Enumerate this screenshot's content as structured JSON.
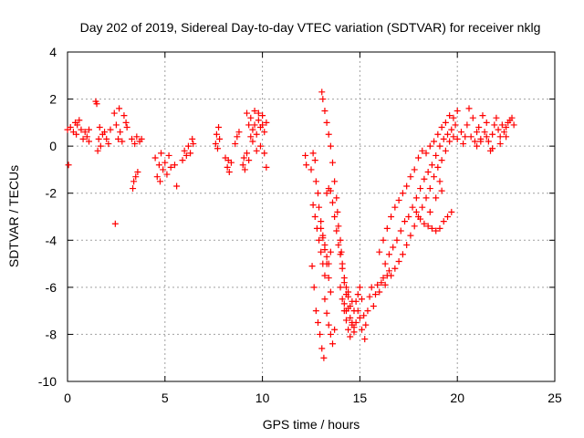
{
  "chart_data": {
    "type": "scatter",
    "title": "Day 202 of 2019, Sidereal Day-to-day VTEC variation (SDTVAR) for receiver nklg",
    "xlabel": "GPS time / hours",
    "ylabel": "SDTVAR / TECUs",
    "xlim": [
      0,
      25
    ],
    "ylim": [
      -10,
      4
    ],
    "xticks": [
      0,
      5,
      10,
      15,
      20,
      25
    ],
    "yticks": [
      -10,
      -8,
      -6,
      -4,
      -2,
      0,
      2,
      4
    ],
    "grid": true,
    "marker": "+",
    "marker_color": "#ff0000",
    "series": [
      {
        "name": "SDTVAR",
        "points": [
          [
            0.0,
            0.7
          ],
          [
            0.05,
            -0.8
          ],
          [
            0.15,
            0.8
          ],
          [
            0.3,
            0.6
          ],
          [
            0.4,
            1.0
          ],
          [
            0.45,
            0.5
          ],
          [
            0.5,
            0.9
          ],
          [
            0.6,
            1.1
          ],
          [
            0.7,
            0.7
          ],
          [
            0.8,
            0.3
          ],
          [
            0.9,
            0.6
          ],
          [
            1.0,
            0.4
          ],
          [
            1.1,
            0.2
          ],
          [
            1.1,
            0.7
          ],
          [
            1.45,
            1.9
          ],
          [
            1.5,
            1.8
          ],
          [
            1.55,
            -0.2
          ],
          [
            1.6,
            0.3
          ],
          [
            1.65,
            0.8
          ],
          [
            1.7,
            0.0
          ],
          [
            1.8,
            0.5
          ],
          [
            1.9,
            0.6
          ],
          [
            2.0,
            0.3
          ],
          [
            2.1,
            0.1
          ],
          [
            2.2,
            0.7
          ],
          [
            2.4,
            1.4
          ],
          [
            2.45,
            -3.3
          ],
          [
            2.5,
            0.9
          ],
          [
            2.6,
            0.3
          ],
          [
            2.65,
            1.6
          ],
          [
            2.7,
            0.6
          ],
          [
            2.8,
            0.2
          ],
          [
            2.9,
            1.3
          ],
          [
            3.0,
            1.0
          ],
          [
            3.05,
            0.8
          ],
          [
            3.3,
            0.3
          ],
          [
            3.35,
            -1.8
          ],
          [
            3.4,
            -1.5
          ],
          [
            3.45,
            0.1
          ],
          [
            3.5,
            -1.3
          ],
          [
            3.55,
            0.4
          ],
          [
            3.6,
            -1.1
          ],
          [
            3.7,
            0.2
          ],
          [
            3.8,
            0.3
          ],
          [
            4.5,
            -0.5
          ],
          [
            4.6,
            -1.3
          ],
          [
            4.7,
            -0.8
          ],
          [
            4.75,
            -1.5
          ],
          [
            4.8,
            -0.3
          ],
          [
            4.9,
            -1.0
          ],
          [
            5.0,
            -0.7
          ],
          [
            5.1,
            -1.2
          ],
          [
            5.2,
            -0.4
          ],
          [
            5.3,
            -0.9
          ],
          [
            5.5,
            -0.8
          ],
          [
            5.6,
            -1.7
          ],
          [
            5.9,
            -0.6
          ],
          [
            6.0,
            -0.2
          ],
          [
            6.1,
            -0.4
          ],
          [
            6.2,
            0.0
          ],
          [
            6.3,
            -0.3
          ],
          [
            6.4,
            0.3
          ],
          [
            6.45,
            0.1
          ],
          [
            7.6,
            0.1
          ],
          [
            7.65,
            0.5
          ],
          [
            7.7,
            -0.1
          ],
          [
            7.75,
            0.8
          ],
          [
            7.8,
            0.3
          ],
          [
            8.1,
            -0.5
          ],
          [
            8.2,
            -0.9
          ],
          [
            8.25,
            -0.6
          ],
          [
            8.3,
            -1.1
          ],
          [
            8.4,
            -0.7
          ],
          [
            8.6,
            0.1
          ],
          [
            8.7,
            0.4
          ],
          [
            8.8,
            0.6
          ],
          [
            9.0,
            -0.8
          ],
          [
            9.05,
            -0.5
          ],
          [
            9.1,
            -1.0
          ],
          [
            9.2,
            -0.3
          ],
          [
            9.3,
            -0.6
          ],
          [
            9.2,
            1.4
          ],
          [
            9.3,
            0.9
          ],
          [
            9.4,
            1.2
          ],
          [
            9.5,
            0.7
          ],
          [
            9.6,
            1.5
          ],
          [
            9.7,
            0.5
          ],
          [
            9.8,
            1.1
          ],
          [
            9.9,
            0.8
          ],
          [
            10.0,
            1.3
          ],
          [
            10.1,
            0.6
          ],
          [
            10.2,
            1.0
          ],
          [
            9.5,
            0.2
          ],
          [
            9.7,
            -0.2
          ],
          [
            9.9,
            0.0
          ],
          [
            10.1,
            -0.3
          ],
          [
            10.2,
            -0.9
          ],
          [
            9.4,
            0.4
          ],
          [
            9.6,
            0.9
          ],
          [
            9.8,
            1.4
          ],
          [
            10.0,
            0.9
          ],
          [
            12.2,
            -0.4
          ],
          [
            12.25,
            -0.8
          ],
          [
            12.5,
            -1.0
          ],
          [
            12.55,
            -5.1
          ],
          [
            12.6,
            -2.5
          ],
          [
            12.65,
            -6.0
          ],
          [
            12.7,
            -3.0
          ],
          [
            12.75,
            -7.0
          ],
          [
            12.8,
            -3.5
          ],
          [
            12.85,
            -7.5
          ],
          [
            12.9,
            -4.0
          ],
          [
            12.95,
            -8.0
          ],
          [
            13.0,
            -4.5
          ],
          [
            13.05,
            -8.6
          ],
          [
            13.1,
            -5.0
          ],
          [
            13.15,
            -9.0
          ],
          [
            13.2,
            -5.5
          ],
          [
            12.6,
            -0.3
          ],
          [
            12.7,
            -0.6
          ],
          [
            12.75,
            -1.5
          ],
          [
            12.85,
            -2.0
          ],
          [
            12.9,
            -2.6
          ],
          [
            13.0,
            -3.2
          ],
          [
            13.1,
            -3.8
          ],
          [
            13.2,
            -4.4
          ],
          [
            13.3,
            -5.0
          ],
          [
            13.4,
            -5.6
          ],
          [
            13.5,
            -6.2
          ],
          [
            13.0,
            -3.5
          ],
          [
            13.1,
            -3.9
          ],
          [
            13.2,
            -4.2
          ],
          [
            13.3,
            -4.7
          ],
          [
            13.4,
            -5.0
          ],
          [
            13.5,
            -4.5
          ],
          [
            13.05,
            2.3
          ],
          [
            13.1,
            2.0
          ],
          [
            13.2,
            1.5
          ],
          [
            13.3,
            1.0
          ],
          [
            13.4,
            0.5
          ],
          [
            13.5,
            0.0
          ],
          [
            13.6,
            -0.7
          ],
          [
            13.7,
            -1.5
          ],
          [
            13.8,
            -2.2
          ],
          [
            13.85,
            -2.8
          ],
          [
            13.9,
            -3.4
          ],
          [
            14.0,
            -4.0
          ],
          [
            14.05,
            -4.5
          ],
          [
            14.1,
            -5.0
          ],
          [
            14.2,
            -5.6
          ],
          [
            14.3,
            -6.0
          ],
          [
            14.4,
            -6.4
          ],
          [
            14.5,
            -6.8
          ],
          [
            13.3,
            -2.0
          ],
          [
            13.4,
            -1.8
          ],
          [
            13.5,
            -1.9
          ],
          [
            13.6,
            -2.4
          ],
          [
            13.7,
            -3.0
          ],
          [
            13.8,
            -3.6
          ],
          [
            13.9,
            -4.2
          ],
          [
            14.0,
            -4.6
          ],
          [
            14.1,
            -5.2
          ],
          [
            14.2,
            -5.8
          ],
          [
            14.3,
            -6.3
          ],
          [
            14.4,
            -6.9
          ],
          [
            14.5,
            -7.3
          ],
          [
            14.6,
            -7.6
          ],
          [
            14.7,
            -7.9
          ],
          [
            13.2,
            -6.5
          ],
          [
            13.3,
            -7.1
          ],
          [
            13.4,
            -7.6
          ],
          [
            13.5,
            -8.0
          ],
          [
            13.6,
            -8.4
          ],
          [
            13.7,
            -7.8
          ],
          [
            14.0,
            -6.0
          ],
          [
            14.1,
            -6.5
          ],
          [
            14.2,
            -7.0
          ],
          [
            14.3,
            -7.4
          ],
          [
            14.4,
            -7.8
          ],
          [
            14.5,
            -8.1
          ],
          [
            14.6,
            -7.5
          ],
          [
            14.7,
            -7.0
          ],
          [
            14.8,
            -6.6
          ],
          [
            14.9,
            -6.3
          ],
          [
            15.0,
            -6.0
          ],
          [
            15.1,
            -6.5
          ],
          [
            15.2,
            -7.2
          ],
          [
            15.25,
            -8.2
          ],
          [
            15.3,
            -7.6
          ],
          [
            15.4,
            -7.0
          ],
          [
            15.5,
            -6.4
          ],
          [
            15.6,
            -6.0
          ],
          [
            15.7,
            -6.8
          ],
          [
            15.8,
            -6.3
          ],
          [
            15.9,
            -5.9
          ],
          [
            16.0,
            -6.2
          ],
          [
            16.1,
            -5.8
          ],
          [
            16.2,
            -5.6
          ],
          [
            16.3,
            -5.9
          ],
          [
            16.4,
            -5.5
          ],
          [
            16.5,
            -5.3
          ],
          [
            15.0,
            -7.3
          ],
          [
            15.1,
            -7.8
          ],
          [
            14.9,
            -7.0
          ],
          [
            14.8,
            -7.5
          ],
          [
            14.7,
            -7.7
          ],
          [
            14.6,
            -6.6
          ],
          [
            14.4,
            -6.2
          ],
          [
            14.3,
            -7.0
          ],
          [
            14.2,
            -6.7
          ],
          [
            16.0,
            -4.5
          ],
          [
            16.2,
            -4.0
          ],
          [
            16.4,
            -3.5
          ],
          [
            16.6,
            -3.0
          ],
          [
            16.8,
            -2.6
          ],
          [
            17.0,
            -2.3
          ],
          [
            17.2,
            -2.0
          ],
          [
            17.4,
            -1.7
          ],
          [
            17.6,
            -1.3
          ],
          [
            17.8,
            -1.0
          ],
          [
            18.0,
            -0.5
          ],
          [
            18.2,
            -0.2
          ],
          [
            18.4,
            -0.3
          ],
          [
            18.6,
            0.0
          ],
          [
            18.8,
            0.2
          ],
          [
            19.0,
            0.5
          ],
          [
            19.2,
            0.8
          ],
          [
            19.4,
            1.0
          ],
          [
            19.6,
            1.3
          ],
          [
            19.8,
            1.2
          ],
          [
            20.0,
            1.5
          ],
          [
            16.3,
            -5.0
          ],
          [
            16.5,
            -4.6
          ],
          [
            16.7,
            -4.3
          ],
          [
            16.9,
            -4.0
          ],
          [
            17.1,
            -3.6
          ],
          [
            17.3,
            -3.2
          ],
          [
            17.5,
            -3.0
          ],
          [
            17.7,
            -2.6
          ],
          [
            17.9,
            -2.2
          ],
          [
            18.1,
            -1.8
          ],
          [
            18.3,
            -1.4
          ],
          [
            18.5,
            -1.1
          ],
          [
            18.7,
            -0.8
          ],
          [
            18.9,
            -0.4
          ],
          [
            19.1,
            0.0
          ],
          [
            19.3,
            0.3
          ],
          [
            19.5,
            0.5
          ],
          [
            19.7,
            0.7
          ],
          [
            19.9,
            0.9
          ],
          [
            16.6,
            -5.5
          ],
          [
            16.8,
            -5.2
          ],
          [
            17.0,
            -4.9
          ],
          [
            17.2,
            -4.6
          ],
          [
            17.4,
            -4.2
          ],
          [
            17.6,
            -3.8
          ],
          [
            17.8,
            -3.4
          ],
          [
            18.0,
            -3.0
          ],
          [
            18.2,
            -2.6
          ],
          [
            18.4,
            -2.2
          ],
          [
            18.6,
            -1.8
          ],
          [
            18.8,
            -1.3
          ],
          [
            19.0,
            -0.9
          ],
          [
            19.2,
            -0.6
          ],
          [
            19.4,
            -0.2
          ],
          [
            19.6,
            0.2
          ],
          [
            19.8,
            0.4
          ],
          [
            17.9,
            -2.8
          ],
          [
            18.1,
            -3.1
          ],
          [
            18.3,
            -3.3
          ],
          [
            18.5,
            -3.4
          ],
          [
            18.7,
            -3.5
          ],
          [
            18.9,
            -3.6
          ],
          [
            19.1,
            -3.5
          ],
          [
            19.3,
            -3.2
          ],
          [
            19.5,
            -3.0
          ],
          [
            19.7,
            -2.8
          ],
          [
            19.1,
            -1.5
          ],
          [
            19.2,
            -1.9
          ],
          [
            18.9,
            -2.2
          ],
          [
            18.6,
            -2.8
          ],
          [
            20.0,
            0.3
          ],
          [
            20.2,
            0.6
          ],
          [
            20.3,
            0.1
          ],
          [
            20.5,
            0.9
          ],
          [
            20.6,
            1.6
          ],
          [
            20.7,
            0.4
          ],
          [
            20.8,
            1.2
          ],
          [
            21.0,
            0.0
          ],
          [
            21.1,
            0.8
          ],
          [
            21.2,
            0.3
          ],
          [
            21.3,
            1.3
          ],
          [
            21.4,
            0.6
          ],
          [
            21.5,
            1.0
          ],
          [
            21.6,
            0.2
          ],
          [
            21.7,
            -0.2
          ],
          [
            21.8,
            0.5
          ],
          [
            21.9,
            0.9
          ],
          [
            22.0,
            1.2
          ],
          [
            22.1,
            0.7
          ],
          [
            22.2,
            0.4
          ],
          [
            22.3,
            0.9
          ],
          [
            22.4,
            0.6
          ],
          [
            22.5,
            0.8
          ],
          [
            22.6,
            1.0
          ],
          [
            22.7,
            1.1
          ],
          [
            22.8,
            1.2
          ],
          [
            22.9,
            0.9
          ],
          [
            20.4,
            0.4
          ],
          [
            20.9,
            0.2
          ],
          [
            21.0,
            0.6
          ],
          [
            21.2,
            0.2
          ],
          [
            21.5,
            0.4
          ],
          [
            21.8,
            -0.1
          ],
          [
            22.2,
            0.1
          ],
          [
            22.5,
            0.4
          ]
        ]
      }
    ]
  }
}
